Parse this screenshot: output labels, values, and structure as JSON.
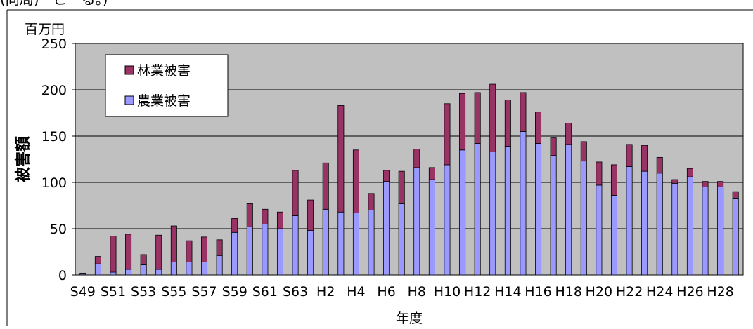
{
  "header_fragment": "(同局)　こ　る。)",
  "chart_data": {
    "type": "bar",
    "stacked": true,
    "unit_label": "百万円",
    "xlabel": "年度",
    "ylabel": "被害額",
    "ylim": [
      0,
      250
    ],
    "yticks": [
      0,
      50,
      100,
      150,
      200,
      250
    ],
    "grid": true,
    "legend_position": "top-left",
    "colors": {
      "plot_bg": "#c0c0c0",
      "agri": "#9999ff",
      "forest": "#993366",
      "border": "#000000"
    },
    "categories": [
      "S49",
      "S50",
      "S51",
      "S52",
      "S53",
      "S54",
      "S55",
      "S56",
      "S57",
      "S58",
      "S59",
      "S60",
      "S61",
      "S62",
      "S63",
      "H1",
      "H2",
      "H3",
      "H4",
      "H5",
      "H6",
      "H7",
      "H8",
      "H9",
      "H10",
      "H11",
      "H12",
      "H13",
      "H14",
      "H15",
      "H16",
      "H17",
      "H18",
      "H19",
      "H20",
      "H21",
      "H22",
      "H23",
      "H24",
      "H25",
      "H26",
      "H27",
      "H28",
      "H29"
    ],
    "tick_labels": [
      "S49",
      "S51",
      "S53",
      "S55",
      "S57",
      "S59",
      "S61",
      "S63",
      "H2",
      "H4",
      "H6",
      "H8",
      "H10",
      "H12",
      "H14",
      "H16",
      "H18",
      "H20",
      "H22",
      "H24",
      "H26",
      "H28"
    ],
    "series": [
      {
        "name": "農業被害",
        "color": "#9999ff",
        "values": [
          1,
          12,
          3,
          6,
          11,
          6,
          14,
          14,
          14,
          21,
          46,
          52,
          55,
          50,
          64,
          48,
          71,
          68,
          67,
          70,
          101,
          77,
          116,
          103,
          119,
          135,
          142,
          133,
          139,
          155,
          142,
          129,
          141,
          123,
          97,
          86,
          117,
          112,
          110,
          99,
          106,
          95,
          95,
          83
        ]
      },
      {
        "name": "林業被害",
        "color": "#993366",
        "values": [
          1,
          8,
          39,
          38,
          11,
          37,
          39,
          23,
          27,
          17,
          15,
          25,
          16,
          18,
          49,
          33,
          50,
          115,
          68,
          18,
          12,
          35,
          20,
          13,
          66,
          61,
          55,
          73,
          50,
          42,
          34,
          19,
          23,
          21,
          25,
          33,
          24,
          28,
          17,
          4,
          9,
          6,
          6,
          7
        ]
      }
    ],
    "legend": [
      {
        "label": "林業被害",
        "color": "#993366"
      },
      {
        "label": "農業被害",
        "color": "#9999ff"
      }
    ]
  }
}
